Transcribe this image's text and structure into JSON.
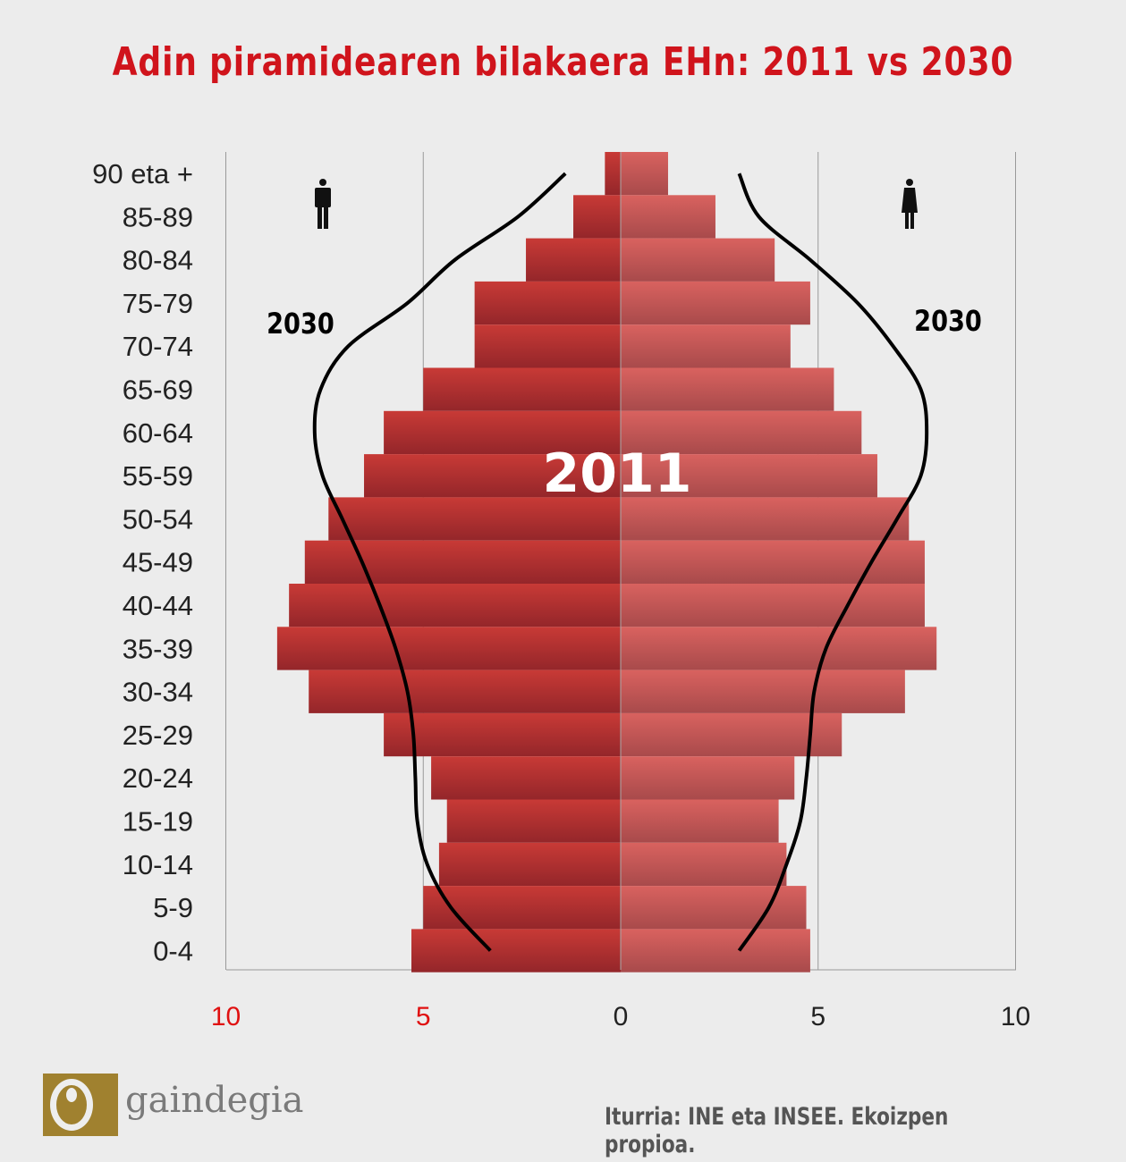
{
  "chart_data": {
    "type": "bar",
    "orientation": "horizontal-pyramid",
    "title": "Adin piramidearen bilakaera EHn: 2011 vs 2030",
    "categories": [
      "90 eta +",
      "85-89",
      "80-84",
      "75-79",
      "70-74",
      "65-69",
      "60-64",
      "55-59",
      "50-54",
      "45-49",
      "40-44",
      "35-39",
      "30-34",
      "25-29",
      "20-24",
      "15-19",
      "10-14",
      "5-9",
      "0-4"
    ],
    "series": [
      {
        "side": "left",
        "icon": "male-icon",
        "color": "#b83230",
        "values": [
          0.4,
          1.2,
          2.4,
          3.7,
          3.7,
          5.0,
          6.0,
          6.5,
          7.4,
          8.0,
          8.4,
          8.7,
          7.9,
          6.0,
          4.8,
          4.4,
          4.6,
          5.0,
          5.3
        ]
      },
      {
        "side": "right",
        "icon": "female-icon",
        "color": "#c95a58",
        "values": [
          1.2,
          2.4,
          3.9,
          4.8,
          4.3,
          5.4,
          6.1,
          6.5,
          7.3,
          7.7,
          7.7,
          8.0,
          7.2,
          5.6,
          4.4,
          4.0,
          4.2,
          4.7,
          4.8
        ]
      }
    ],
    "bars_label": "2011",
    "curves": [
      {
        "name": "2030",
        "side": "left",
        "values": [
          1.4,
          2.6,
          4.2,
          5.4,
          6.9,
          7.6,
          7.75,
          7.55,
          7.05,
          6.55,
          6.1,
          5.7,
          5.4,
          5.25,
          5.2,
          5.15,
          4.9,
          4.3,
          3.3
        ]
      },
      {
        "name": "2030",
        "side": "right",
        "values": [
          3.0,
          3.5,
          4.8,
          6.0,
          6.9,
          7.6,
          7.75,
          7.6,
          7.0,
          6.35,
          5.75,
          5.2,
          4.9,
          4.8,
          4.7,
          4.55,
          4.2,
          3.75,
          3.0
        ]
      }
    ],
    "x_ticks": [
      {
        "label": "10",
        "value": -10,
        "color": "#e01010"
      },
      {
        "label": "5",
        "value": -5,
        "color": "#e01010"
      },
      {
        "label": "0",
        "value": 0,
        "color": "#222"
      },
      {
        "label": "5",
        "value": 5,
        "color": "#222"
      },
      {
        "label": "10",
        "value": 10,
        "color": "#222"
      }
    ],
    "xlim": [
      -10,
      10
    ],
    "grid": true
  },
  "source": "Iturria: INE eta INSEE. Ekoizpen propioa.",
  "logo_text": "gaindegia"
}
